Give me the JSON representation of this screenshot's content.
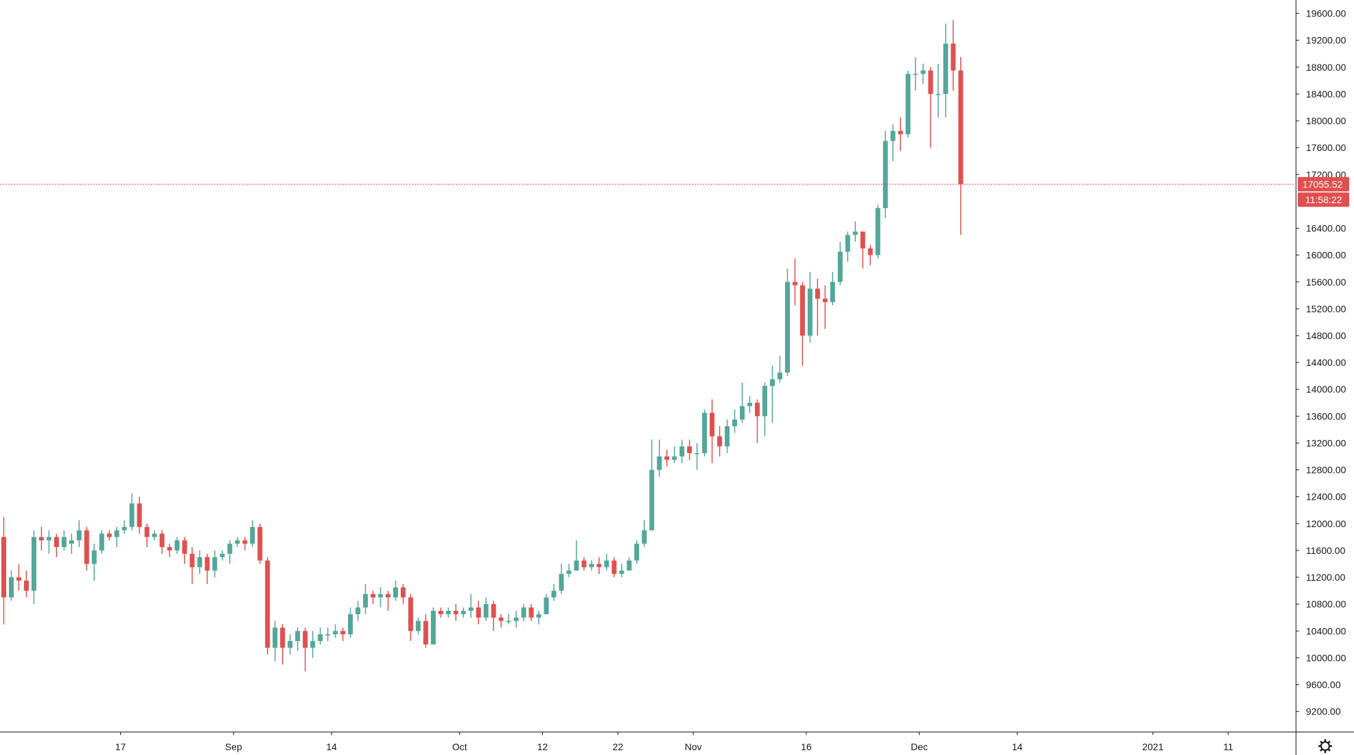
{
  "chart_data": {
    "type": "candlestick",
    "y_range": [
      8900,
      19800
    ],
    "y_ticks": [
      "9200.00",
      "9600.00",
      "10000.00",
      "10400.00",
      "10800.00",
      "11200.00",
      "11600.00",
      "12000.00",
      "12400.00",
      "12800.00",
      "13200.00",
      "13600.00",
      "14000.00",
      "14400.00",
      "14800.00",
      "15200.00",
      "15600.00",
      "16000.00",
      "16400.00",
      "17200.00",
      "17600.00",
      "18000.00",
      "18400.00",
      "18800.00",
      "19200.00",
      "19600.00"
    ],
    "x_labels": [
      {
        "label": "17",
        "bar": 15.5
      },
      {
        "label": "Sep",
        "bar": 30.5
      },
      {
        "label": "14",
        "bar": 43.5
      },
      {
        "label": "Oct",
        "bar": 60.5
      },
      {
        "label": "12",
        "bar": 71.5
      },
      {
        "label": "22",
        "bar": 81.5
      },
      {
        "label": "Nov",
        "bar": 91.5
      },
      {
        "label": "16",
        "bar": 106.5
      },
      {
        "label": "Dec",
        "bar": 121.5
      },
      {
        "label": "14",
        "bar": 134.5
      },
      {
        "label": "2021",
        "bar": 152.5
      },
      {
        "label": "11",
        "bar": 162.5
      }
    ],
    "last_price": {
      "value": 17055.52,
      "label": "17055.52",
      "countdown": "11:58:22"
    },
    "colors": {
      "up": "#53a69a",
      "down": "#e0504e",
      "axis": "#131722",
      "price_line": "#e0504e"
    },
    "candles": [
      [
        11800,
        10900,
        12100,
        10500
      ],
      [
        10900,
        11200,
        11300,
        10850
      ],
      [
        11200,
        11150,
        11400,
        11000
      ],
      [
        11150,
        11000,
        11300,
        10900
      ],
      [
        11000,
        11800,
        11900,
        10800
      ],
      [
        11800,
        11750,
        11950,
        11600
      ],
      [
        11750,
        11800,
        11900,
        11550
      ],
      [
        11800,
        11650,
        11850,
        11500
      ],
      [
        11650,
        11800,
        11900,
        11600
      ],
      [
        11700,
        11750,
        11850,
        11550
      ],
      [
        11750,
        11900,
        12050,
        11650
      ],
      [
        11900,
        11400,
        11950,
        11300
      ],
      [
        11400,
        11600,
        11700,
        11150
      ],
      [
        11600,
        11850,
        11900,
        11550
      ],
      [
        11850,
        11800,
        11900,
        11750
      ],
      [
        11800,
        11900,
        11950,
        11650
      ],
      [
        11900,
        11950,
        12050,
        11850
      ],
      [
        11950,
        12300,
        12450,
        11900
      ],
      [
        12300,
        11950,
        12400,
        11850
      ],
      [
        11950,
        11800,
        12000,
        11650
      ],
      [
        11800,
        11850,
        11900,
        11750
      ],
      [
        11850,
        11650,
        11900,
        11550
      ],
      [
        11650,
        11600,
        11700,
        11500
      ],
      [
        11600,
        11750,
        11800,
        11550
      ],
      [
        11750,
        11550,
        11800,
        11400
      ],
      [
        11550,
        11350,
        11650,
        11100
      ],
      [
        11350,
        11500,
        11600,
        11250
      ],
      [
        11500,
        11300,
        11550,
        11100
      ],
      [
        11300,
        11500,
        11600,
        11200
      ],
      [
        11500,
        11550,
        11600,
        11450
      ],
      [
        11550,
        11700,
        11750,
        11400
      ],
      [
        11700,
        11750,
        11800,
        11650
      ],
      [
        11750,
        11700,
        11800,
        11600
      ],
      [
        11700,
        11950,
        12050,
        11650
      ],
      [
        11950,
        11450,
        12000,
        11400
      ],
      [
        11450,
        10150,
        11500,
        10050
      ],
      [
        10150,
        10450,
        10550,
        9950
      ],
      [
        10450,
        10150,
        10500,
        9900
      ],
      [
        10150,
        10250,
        10350,
        10050
      ],
      [
        10250,
        10400,
        10450,
        10100
      ],
      [
        10400,
        10150,
        10450,
        9800
      ],
      [
        10150,
        10250,
        10400,
        10000
      ],
      [
        10250,
        10350,
        10450,
        10200
      ],
      [
        10350,
        10350,
        10450,
        10250
      ],
      [
        10350,
        10400,
        10500,
        10300
      ],
      [
        10400,
        10350,
        10450,
        10250
      ],
      [
        10350,
        10650,
        10750,
        10300
      ],
      [
        10650,
        10750,
        10850,
        10550
      ],
      [
        10750,
        10950,
        11100,
        10650
      ],
      [
        10950,
        10900,
        11000,
        10800
      ],
      [
        10900,
        10950,
        11050,
        10750
      ],
      [
        10950,
        10900,
        11000,
        10700
      ],
      [
        10900,
        11050,
        11150,
        10850
      ],
      [
        11050,
        10900,
        11100,
        10800
      ],
      [
        10900,
        10400,
        10950,
        10250
      ],
      [
        10400,
        10550,
        10600,
        10350
      ],
      [
        10550,
        10200,
        10650,
        10150
      ],
      [
        10200,
        10700,
        10750,
        10200
      ],
      [
        10700,
        10650,
        10750,
        10600
      ],
      [
        10650,
        10700,
        10750,
        10600
      ],
      [
        10700,
        10650,
        10800,
        10550
      ],
      [
        10650,
        10700,
        10750,
        10600
      ],
      [
        10700,
        10750,
        10950,
        10600
      ],
      [
        10750,
        10600,
        10850,
        10500
      ],
      [
        10600,
        10800,
        10900,
        10550
      ],
      [
        10800,
        10600,
        10850,
        10400
      ],
      [
        10600,
        10550,
        10650,
        10450
      ],
      [
        10550,
        10550,
        10650,
        10500
      ],
      [
        10550,
        10600,
        10700,
        10450
      ],
      [
        10600,
        10750,
        10800,
        10550
      ],
      [
        10750,
        10600,
        10800,
        10550
      ],
      [
        10600,
        10650,
        10700,
        10500
      ],
      [
        10650,
        10900,
        10950,
        10650
      ],
      [
        10900,
        11000,
        11100,
        10850
      ],
      [
        11000,
        11250,
        11400,
        10950
      ],
      [
        11250,
        11300,
        11400,
        11200
      ],
      [
        11300,
        11450,
        11750,
        11300
      ],
      [
        11450,
        11350,
        11500,
        11300
      ],
      [
        11350,
        11400,
        11450,
        11300
      ],
      [
        11400,
        11350,
        11500,
        11250
      ],
      [
        11350,
        11450,
        11550,
        11300
      ],
      [
        11450,
        11250,
        11500,
        11200
      ],
      [
        11250,
        11300,
        11400,
        11200
      ],
      [
        11300,
        11450,
        11500,
        11300
      ],
      [
        11450,
        11700,
        11750,
        11400
      ],
      [
        11700,
        11900,
        12050,
        11650
      ],
      [
        11900,
        12800,
        13250,
        11900
      ],
      [
        12800,
        13000,
        13250,
        12700
      ],
      [
        13000,
        12950,
        13100,
        12850
      ],
      [
        12950,
        13000,
        13150,
        12900
      ],
      [
        13000,
        13150,
        13250,
        12900
      ],
      [
        13150,
        13050,
        13250,
        12950
      ],
      [
        13050,
        13050,
        13200,
        12800
      ],
      [
        13050,
        13650,
        13700,
        13000
      ],
      [
        13650,
        13300,
        13850,
        12900
      ],
      [
        13300,
        13150,
        13450,
        13000
      ],
      [
        13150,
        13450,
        13550,
        13050
      ],
      [
        13450,
        13550,
        13700,
        13350
      ],
      [
        13550,
        13750,
        14100,
        13500
      ],
      [
        13750,
        13800,
        13900,
        13650
      ],
      [
        13800,
        13600,
        13850,
        13200
      ],
      [
        13600,
        14050,
        14100,
        13300
      ],
      [
        14050,
        14150,
        14350,
        13500
      ],
      [
        14150,
        14250,
        14500,
        14100
      ],
      [
        14250,
        15600,
        15800,
        14200
      ],
      [
        15600,
        15550,
        15950,
        15250
      ],
      [
        15550,
        14800,
        15600,
        14350
      ],
      [
        14800,
        15500,
        15750,
        14700
      ],
      [
        15500,
        15350,
        15650,
        14800
      ],
      [
        15350,
        15300,
        15550,
        14900
      ],
      [
        15300,
        15600,
        15750,
        15250
      ],
      [
        15600,
        16050,
        16200,
        15550
      ],
      [
        16050,
        16300,
        16350,
        15900
      ],
      [
        16300,
        16350,
        16500,
        16200
      ],
      [
        16350,
        16100,
        16350,
        15800
      ],
      [
        16100,
        16000,
        16150,
        15850
      ],
      [
        16000,
        16700,
        16750,
        15950
      ],
      [
        16700,
        17700,
        17850,
        16550
      ],
      [
        17700,
        17850,
        17950,
        17400
      ],
      [
        17850,
        17800,
        18050,
        17550
      ],
      [
        17800,
        18700,
        18750,
        17750
      ],
      [
        18700,
        18700,
        18950,
        18450
      ],
      [
        18700,
        18750,
        18850,
        18550
      ],
      [
        18750,
        18400,
        18800,
        17600
      ],
      [
        18400,
        18400,
        18850,
        18050
      ],
      [
        18400,
        19150,
        19450,
        18050
      ],
      [
        19150,
        18750,
        19500,
        18450
      ],
      [
        18750,
        17055.52,
        18950,
        16300
      ]
    ]
  }
}
